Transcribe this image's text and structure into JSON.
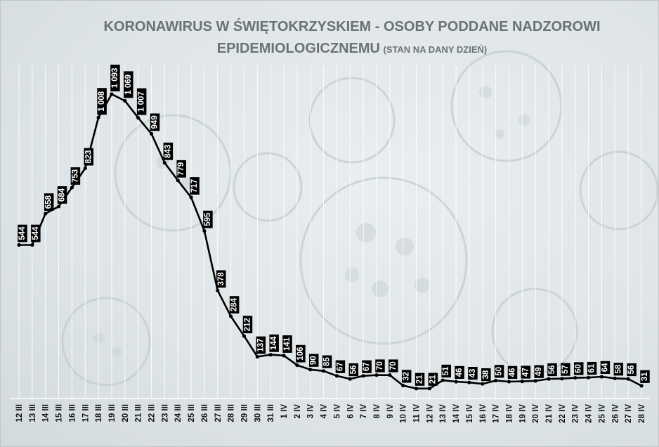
{
  "title": {
    "line1": "KORONAWIRUS W ŚWIĘTOKRZYSKIEM - OSOBY PODDANE NADZOROWI",
    "line2_main": "EPIDEMIOLOGICZNEMU",
    "line2_sub": "(STAN NA DANY DZIEŃ)"
  },
  "chart_data": {
    "type": "line",
    "title": "KORONAWIRUS W ŚWIĘTOKRZYSKIEM - OSOBY PODDANE NADZOROWI EPIDEMIOLOGICZNEMU (STAN NA DANY DZIEŃ)",
    "xlabel": "",
    "ylabel": "",
    "categories": [
      "12 III",
      "13 III",
      "14 III",
      "15 III",
      "16 III",
      "17 III",
      "18 III",
      "19 III",
      "20 III",
      "21 III",
      "22 III",
      "23 III",
      "24 III",
      "25 III",
      "26 III",
      "27 III",
      "28 III",
      "29 III",
      "30 III",
      "31 III",
      "1 IV",
      "2 IV",
      "3 IV",
      "4 IV",
      "5 IV",
      "6 IV",
      "7 IV",
      "8 IV",
      "9 IV",
      "10 IV",
      "11 IV",
      "12 IV",
      "13 IV",
      "14 IV",
      "15 IV",
      "16 IV",
      "17 IV",
      "18 IV",
      "19 IV",
      "20 IV",
      "21 IV",
      "22 IV",
      "23 IV",
      "24 IV",
      "25 IV",
      "26 IV",
      "27 IV",
      "28 IV"
    ],
    "values": [
      544,
      544,
      658,
      684,
      753,
      823,
      1008,
      1093,
      1069,
      1007,
      949,
      843,
      779,
      717,
      595,
      378,
      284,
      212,
      137,
      144,
      141,
      106,
      90,
      85,
      67,
      56,
      67,
      70,
      70,
      32,
      21,
      21,
      51,
      46,
      43,
      38,
      50,
      46,
      47,
      49,
      56,
      57,
      60,
      61,
      64,
      58,
      56,
      31
    ],
    "data_labels": [
      "544",
      "544",
      "658",
      "684",
      "753",
      "823",
      "1 008",
      "1 093",
      "1 069",
      "1 007",
      "949",
      "843",
      "779",
      "717",
      "595",
      "378",
      "284",
      "212",
      "137",
      "144",
      "141",
      "106",
      "90",
      "85",
      "67",
      "56",
      "67",
      "70",
      "70",
      "32",
      "21",
      "21",
      "51",
      "46",
      "43",
      "38",
      "50",
      "46",
      "47",
      "49",
      "56",
      "57",
      "60",
      "61",
      "64",
      "58",
      "56",
      "31"
    ],
    "ylim": [
      0,
      1150
    ],
    "grid": true,
    "legend": "none",
    "colors": {
      "line": "#000000",
      "label_bg": "#000000",
      "label_text": "#ffffff",
      "grid": "#ffffff"
    }
  }
}
